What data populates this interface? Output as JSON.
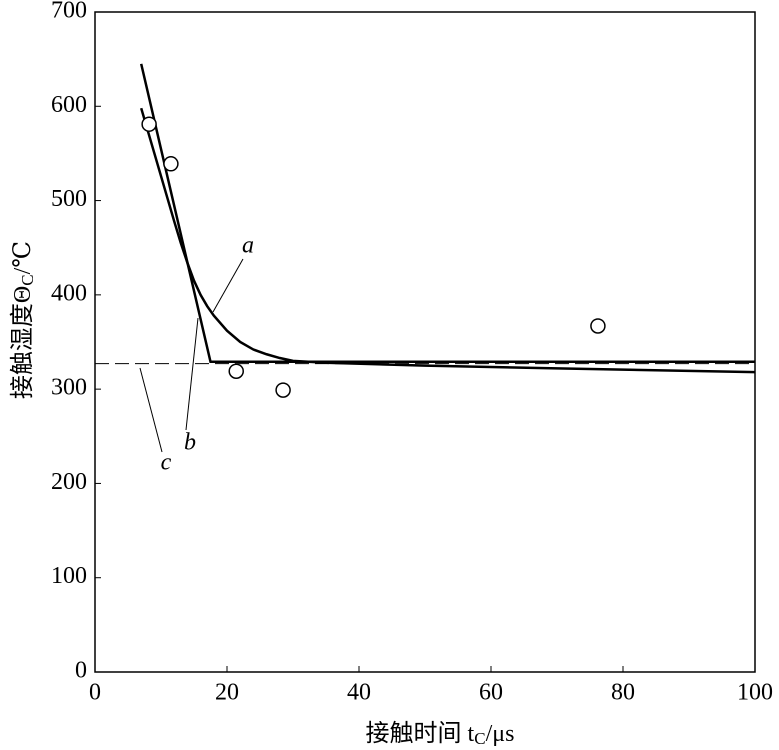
{
  "chart_data": {
    "type": "line",
    "xlabel": {
      "main": "接触时间 t",
      "sub": "C",
      "unit": "/μs"
    },
    "ylabel": {
      "main": "接触湿度Θ",
      "sub": "C",
      "unit": "/℃"
    },
    "xlim": [
      0,
      100
    ],
    "xticks": [
      0,
      20,
      40,
      60,
      80,
      100
    ],
    "ylim": [
      0,
      700
    ],
    "yticks": [
      0,
      100,
      200,
      300,
      400,
      500,
      600,
      700
    ],
    "color": "#000000",
    "series": [
      {
        "name": "a",
        "style": "solid",
        "x": [
          7,
          8,
          9,
          10,
          11,
          12,
          13,
          14,
          15,
          16,
          17,
          18,
          20,
          22,
          24,
          26,
          28,
          30,
          35,
          50,
          70,
          100
        ],
        "values": [
          598,
          574,
          550,
          526,
          502,
          478,
          455,
          434,
          415,
          400,
          388,
          378,
          362,
          350,
          342,
          337,
          333,
          330,
          328,
          325,
          322,
          318
        ]
      },
      {
        "name": "b",
        "style": "solid",
        "x": [
          7,
          17.5,
          100
        ],
        "values": [
          645,
          329,
          329
        ]
      },
      {
        "name": "c",
        "style": "dashed",
        "x": [
          0,
          100
        ],
        "values": [
          327,
          327
        ]
      }
    ],
    "points": {
      "x": [
        8.2,
        11.5,
        21.4,
        28.5,
        76.2
      ],
      "values": [
        581,
        539,
        319,
        299,
        367
      ]
    }
  }
}
